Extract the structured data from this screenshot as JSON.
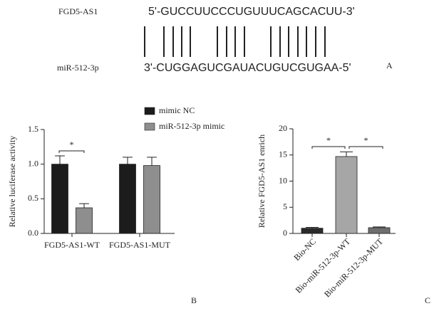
{
  "sequence_panel": {
    "label": "A",
    "rows": [
      {
        "name": "FGD5-AS1",
        "sequence": "5'-GUCCUUCCCUGUUUCAGCACUU-3'"
      },
      {
        "name": "miR-512-3p",
        "sequence": "3'-CUGGAGUCGAUACUGUCGUGAA-5'"
      }
    ]
  },
  "chart_data": [
    {
      "type": "bar",
      "panel": "B",
      "y_label": "Relative luciferase activity",
      "categories": [
        "FGD5-AS1-WT",
        "FGD5-AS1-MUT"
      ],
      "series": [
        {
          "name": "mimic NC",
          "color": "#1c1c1c",
          "values": [
            1.0,
            1.0
          ],
          "errors": [
            0.12,
            0.1
          ]
        },
        {
          "name": "miR-512-3p mimic",
          "color": "#8e8e8e",
          "values": [
            0.37,
            0.98
          ],
          "errors": [
            0.06,
            0.12
          ]
        }
      ],
      "ylim": [
        0,
        1.5
      ],
      "yticks": [
        {
          "value": 0,
          "label": "0.0"
        },
        0.5,
        {
          "value": 1,
          "label": "1.0"
        },
        1.5
      ],
      "annotations": [
        "*"
      ]
    },
    {
      "type": "bar",
      "panel": "C",
      "y_label": "Relative FGD5-AS1 enrich",
      "categories": [
        "Bio-NC",
        "Bio-miR-512-3p-WT",
        "Bio-miR-512-3p-MUT"
      ],
      "series": [
        {
          "colors": [
            "#2a2a2a",
            "#a6a6a6",
            "#6e6e6e"
          ],
          "values": [
            1.0,
            14.7,
            1.1
          ],
          "errors": [
            0.15,
            0.9,
            0.15
          ]
        }
      ],
      "ylim": [
        0,
        20
      ],
      "yticks": [
        0,
        5,
        10,
        15,
        20
      ],
      "annotations": [
        "*",
        "*"
      ]
    }
  ]
}
